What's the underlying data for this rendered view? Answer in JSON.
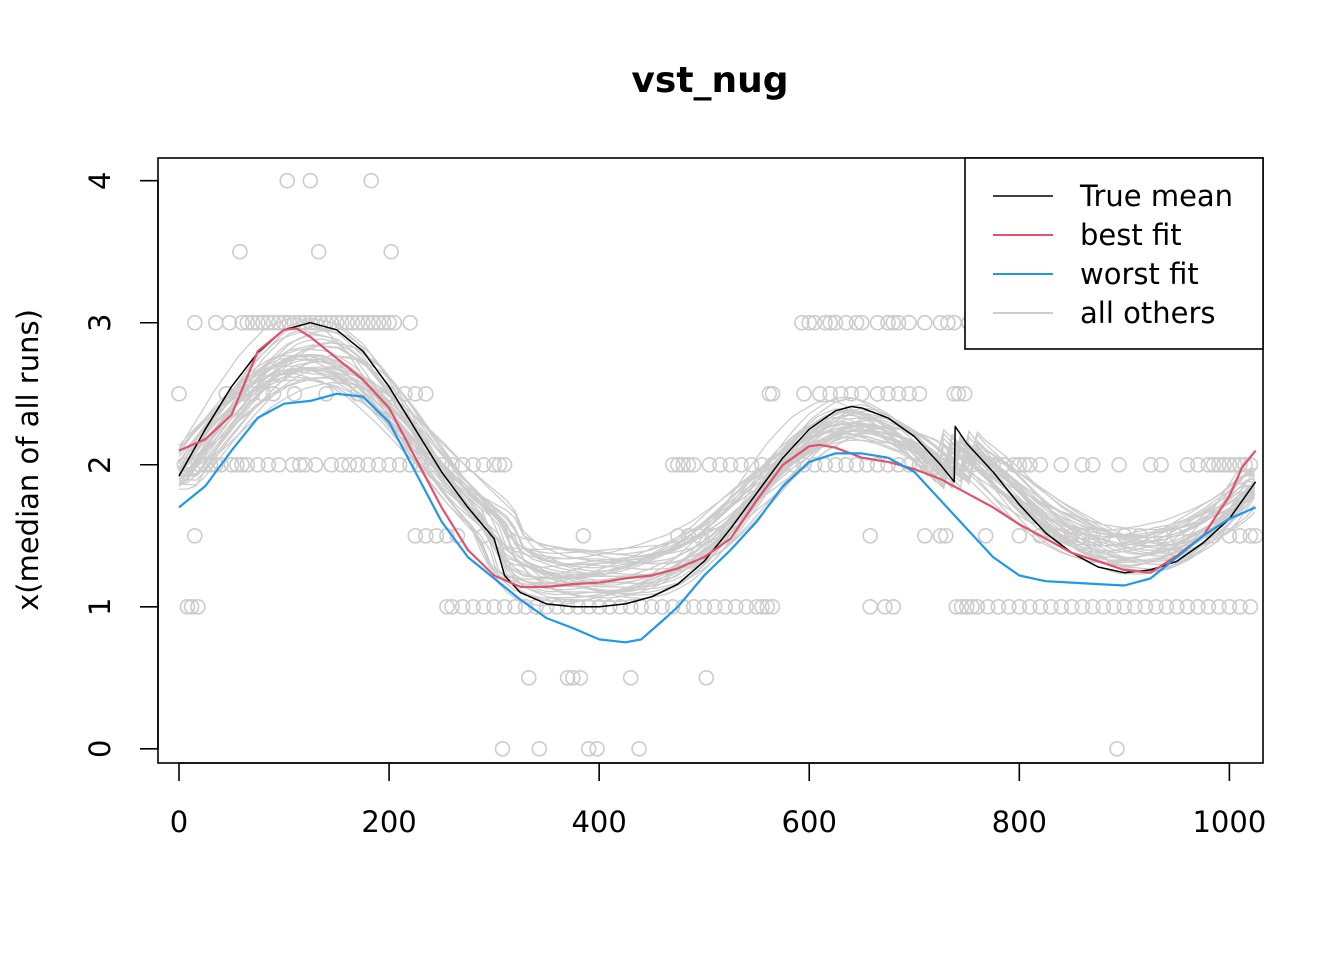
{
  "chart_data": {
    "type": "scatter",
    "title": "vst_nug",
    "xlabel": "",
    "ylabel": "x(median of all runs)",
    "xlim": [
      -20,
      1032
    ],
    "ylim": [
      -0.1,
      4.16
    ],
    "xticks": [
      0,
      200,
      400,
      600,
      800,
      1000
    ],
    "yticks": [
      0,
      1,
      2,
      3,
      4
    ],
    "grid": false,
    "legend": {
      "position": "top-right",
      "entries": [
        {
          "label": "True mean",
          "color": "#000000"
        },
        {
          "label": "best fit",
          "color": "#DF536B"
        },
        {
          "label": "worst fit",
          "color": "#2297E6"
        },
        {
          "label": "all others",
          "color": "#CCCCCC"
        }
      ]
    },
    "points_color": "#CCCCCC",
    "points": [
      [
        0,
        2.5
      ],
      [
        5,
        2
      ],
      [
        8,
        1
      ],
      [
        10,
        2
      ],
      [
        12,
        1
      ],
      [
        15,
        1.5
      ],
      [
        18,
        1
      ],
      [
        20,
        2
      ],
      [
        25,
        2
      ],
      [
        30,
        2
      ],
      [
        35,
        2
      ],
      [
        40,
        2
      ],
      [
        45,
        2.5
      ],
      [
        50,
        2
      ],
      [
        55,
        2
      ],
      [
        60,
        2
      ],
      [
        15,
        3
      ],
      [
        35,
        3
      ],
      [
        48,
        3
      ],
      [
        60,
        3
      ],
      [
        65,
        3
      ],
      [
        70,
        3
      ],
      [
        75,
        3
      ],
      [
        80,
        3
      ],
      [
        85,
        3
      ],
      [
        90,
        3
      ],
      [
        95,
        3
      ],
      [
        100,
        3
      ],
      [
        105,
        3
      ],
      [
        110,
        3
      ],
      [
        115,
        3
      ],
      [
        120,
        3
      ],
      [
        125,
        3
      ],
      [
        130,
        3
      ],
      [
        135,
        3
      ],
      [
        140,
        3
      ],
      [
        145,
        3
      ],
      [
        150,
        3
      ],
      [
        155,
        3
      ],
      [
        160,
        3
      ],
      [
        165,
        3
      ],
      [
        170,
        3
      ],
      [
        175,
        3
      ],
      [
        180,
        3
      ],
      [
        185,
        3
      ],
      [
        190,
        3
      ],
      [
        195,
        3
      ],
      [
        200,
        3
      ],
      [
        205,
        3
      ],
      [
        220,
        3
      ],
      [
        58,
        3.5
      ],
      [
        133,
        3.5
      ],
      [
        202,
        3.5
      ],
      [
        103,
        4
      ],
      [
        125,
        4
      ],
      [
        183,
        4
      ],
      [
        65,
        2
      ],
      [
        75,
        2
      ],
      [
        85,
        2
      ],
      [
        95,
        2
      ],
      [
        108,
        2
      ],
      [
        115,
        2
      ],
      [
        120,
        2
      ],
      [
        130,
        2
      ],
      [
        145,
        2
      ],
      [
        155,
        2
      ],
      [
        162,
        2
      ],
      [
        170,
        2
      ],
      [
        180,
        2
      ],
      [
        190,
        2
      ],
      [
        200,
        2
      ],
      [
        210,
        2
      ],
      [
        220,
        2
      ],
      [
        230,
        2
      ],
      [
        240,
        2
      ],
      [
        250,
        2
      ],
      [
        260,
        2
      ],
      [
        270,
        2
      ],
      [
        280,
        2
      ],
      [
        290,
        2
      ],
      [
        300,
        2
      ],
      [
        305,
        2
      ],
      [
        310,
        2
      ],
      [
        45,
        2.5
      ],
      [
        60,
        2.5
      ],
      [
        70,
        2.5
      ],
      [
        80,
        2.5
      ],
      [
        90,
        2.5
      ],
      [
        110,
        2.5
      ],
      [
        140,
        2.5
      ],
      [
        170,
        2.5
      ],
      [
        200,
        2.5
      ],
      [
        215,
        2.5
      ],
      [
        225,
        2.5
      ],
      [
        235,
        2.5
      ],
      [
        225,
        1.5
      ],
      [
        235,
        1.5
      ],
      [
        245,
        1.5
      ],
      [
        255,
        1.5
      ],
      [
        265,
        1.5
      ],
      [
        290,
        1.5
      ],
      [
        255,
        1
      ],
      [
        260,
        1
      ],
      [
        270,
        1
      ],
      [
        280,
        1
      ],
      [
        290,
        1
      ],
      [
        300,
        1
      ],
      [
        310,
        1
      ],
      [
        320,
        1
      ],
      [
        330,
        1
      ],
      [
        340,
        1
      ],
      [
        350,
        1
      ],
      [
        360,
        1
      ],
      [
        370,
        1
      ],
      [
        380,
        1
      ],
      [
        390,
        1
      ],
      [
        400,
        1
      ],
      [
        410,
        1
      ],
      [
        420,
        1
      ],
      [
        430,
        1
      ],
      [
        440,
        1
      ],
      [
        450,
        1
      ],
      [
        460,
        1
      ],
      [
        470,
        1
      ],
      [
        480,
        1
      ],
      [
        490,
        1
      ],
      [
        500,
        1
      ],
      [
        510,
        1
      ],
      [
        520,
        1
      ],
      [
        530,
        1
      ],
      [
        540,
        1
      ],
      [
        550,
        1
      ],
      [
        555,
        1
      ],
      [
        560,
        1
      ],
      [
        565,
        1
      ],
      [
        308,
        0
      ],
      [
        343,
        0
      ],
      [
        390,
        0
      ],
      [
        398,
        0
      ],
      [
        438,
        0
      ],
      [
        333,
        0.5
      ],
      [
        370,
        0.5
      ],
      [
        375,
        0.5
      ],
      [
        382,
        0.5
      ],
      [
        430,
        0.5
      ],
      [
        502,
        0.5
      ],
      [
        385,
        1.5
      ],
      [
        475,
        1.5
      ],
      [
        485,
        1.5
      ],
      [
        495,
        1.5
      ],
      [
        510,
        1.5
      ],
      [
        470,
        2
      ],
      [
        475,
        2
      ],
      [
        480,
        2
      ],
      [
        485,
        2
      ],
      [
        490,
        2
      ],
      [
        505,
        2
      ],
      [
        515,
        2
      ],
      [
        525,
        2
      ],
      [
        535,
        2
      ],
      [
        545,
        2
      ],
      [
        555,
        2
      ],
      [
        565,
        2
      ],
      [
        575,
        2
      ],
      [
        585,
        2
      ],
      [
        595,
        2
      ],
      [
        605,
        2
      ],
      [
        615,
        2
      ],
      [
        625,
        2
      ],
      [
        635,
        2
      ],
      [
        645,
        2
      ],
      [
        655,
        2
      ],
      [
        665,
        2
      ],
      [
        675,
        2
      ],
      [
        685,
        2
      ],
      [
        695,
        2
      ],
      [
        705,
        2
      ],
      [
        715,
        2
      ],
      [
        725,
        2
      ],
      [
        735,
        2
      ],
      [
        745,
        2
      ],
      [
        755,
        2
      ],
      [
        765,
        2
      ],
      [
        775,
        2
      ],
      [
        785,
        2
      ],
      [
        795,
        2
      ],
      [
        800,
        2
      ],
      [
        805,
        2
      ],
      [
        810,
        2
      ],
      [
        562,
        2.5
      ],
      [
        565,
        2.5
      ],
      [
        595,
        2.5
      ],
      [
        610,
        2.5
      ],
      [
        620,
        2.5
      ],
      [
        630,
        2.5
      ],
      [
        640,
        2.5
      ],
      [
        650,
        2.5
      ],
      [
        665,
        2.5
      ],
      [
        675,
        2.5
      ],
      [
        685,
        2.5
      ],
      [
        695,
        2.5
      ],
      [
        705,
        2.5
      ],
      [
        738,
        2.5
      ],
      [
        742,
        2.5
      ],
      [
        748,
        2.5
      ],
      [
        593,
        3
      ],
      [
        600,
        3
      ],
      [
        605,
        3
      ],
      [
        615,
        3
      ],
      [
        620,
        3
      ],
      [
        625,
        3
      ],
      [
        635,
        3
      ],
      [
        645,
        3
      ],
      [
        650,
        3
      ],
      [
        665,
        3
      ],
      [
        675,
        3
      ],
      [
        680,
        3
      ],
      [
        685,
        3
      ],
      [
        695,
        3
      ],
      [
        710,
        3
      ],
      [
        725,
        3
      ],
      [
        732,
        3
      ],
      [
        738,
        3
      ],
      [
        752,
        3
      ],
      [
        658,
        1.5
      ],
      [
        710,
        1.5
      ],
      [
        725,
        1.5
      ],
      [
        730,
        1.5
      ],
      [
        768,
        1.5
      ],
      [
        800,
        1.5
      ],
      [
        820,
        1.5
      ],
      [
        840,
        1.5
      ],
      [
        850,
        1.5
      ],
      [
        860,
        1.5
      ],
      [
        870,
        1.5
      ],
      [
        880,
        1.5
      ],
      [
        900,
        1.5
      ],
      [
        915,
        1.5
      ],
      [
        935,
        1.5
      ],
      [
        950,
        1.5
      ],
      [
        985,
        1.5
      ],
      [
        1000,
        1.5
      ],
      [
        1010,
        1.5
      ],
      [
        1020,
        1.5
      ],
      [
        1025,
        1.5
      ],
      [
        658,
        1
      ],
      [
        672,
        1
      ],
      [
        680,
        1
      ],
      [
        740,
        1
      ],
      [
        745,
        1
      ],
      [
        750,
        1
      ],
      [
        755,
        1
      ],
      [
        760,
        1
      ],
      [
        770,
        1
      ],
      [
        780,
        1
      ],
      [
        790,
        1
      ],
      [
        800,
        1
      ],
      [
        810,
        1
      ],
      [
        820,
        1
      ],
      [
        830,
        1
      ],
      [
        840,
        1
      ],
      [
        850,
        1
      ],
      [
        860,
        1
      ],
      [
        870,
        1
      ],
      [
        880,
        1
      ],
      [
        890,
        1
      ],
      [
        900,
        1
      ],
      [
        910,
        1
      ],
      [
        920,
        1
      ],
      [
        930,
        1
      ],
      [
        940,
        1
      ],
      [
        950,
        1
      ],
      [
        960,
        1
      ],
      [
        970,
        1
      ],
      [
        980,
        1
      ],
      [
        990,
        1
      ],
      [
        1000,
        1
      ],
      [
        1010,
        1
      ],
      [
        1020,
        1
      ],
      [
        820,
        2
      ],
      [
        840,
        2
      ],
      [
        860,
        2
      ],
      [
        870,
        2
      ],
      [
        895,
        2
      ],
      [
        925,
        2
      ],
      [
        935,
        2
      ],
      [
        960,
        2
      ],
      [
        970,
        2
      ],
      [
        980,
        2
      ],
      [
        985,
        2
      ],
      [
        990,
        2
      ],
      [
        995,
        2
      ],
      [
        1000,
        2
      ],
      [
        1005,
        2
      ],
      [
        1010,
        2
      ],
      [
        1015,
        2
      ],
      [
        1020,
        2
      ],
      [
        893,
        0
      ]
    ],
    "series": [
      {
        "name": "True mean",
        "color": "#000000",
        "width": 1.5,
        "x": [
          0,
          25,
          50,
          75,
          100,
          125,
          150,
          175,
          200,
          225,
          250,
          275,
          300,
          305,
          310,
          325,
          350,
          375,
          400,
          425,
          450,
          475,
          500,
          525,
          550,
          575,
          600,
          625,
          640,
          650,
          675,
          700,
          725,
          738,
          739,
          750,
          775,
          800,
          825,
          850,
          875,
          900,
          925,
          950,
          975,
          1000,
          1025
        ],
        "y": [
          1.92,
          2.25,
          2.55,
          2.79,
          2.95,
          3.0,
          2.95,
          2.8,
          2.55,
          2.25,
          1.95,
          1.7,
          1.48,
          1.35,
          1.22,
          1.1,
          1.02,
          1.0,
          1.0,
          1.02,
          1.07,
          1.16,
          1.32,
          1.55,
          1.8,
          2.05,
          2.25,
          2.38,
          2.41,
          2.4,
          2.33,
          2.2,
          2.0,
          1.88,
          2.27,
          2.15,
          1.95,
          1.72,
          1.52,
          1.38,
          1.28,
          1.24,
          1.26,
          1.32,
          1.45,
          1.62,
          1.88
        ]
      },
      {
        "name": "best fit",
        "color": "#DF536B",
        "width": 2.2,
        "x": [
          0,
          25,
          50,
          75,
          100,
          112,
          125,
          150,
          175,
          200,
          225,
          250,
          275,
          300,
          325,
          350,
          375,
          400,
          425,
          450,
          475,
          500,
          525,
          550,
          575,
          600,
          610,
          625,
          650,
          675,
          700,
          725,
          750,
          775,
          800,
          825,
          850,
          875,
          900,
          925,
          950,
          975,
          1000,
          1012,
          1025
        ],
        "y": [
          2.1,
          2.18,
          2.35,
          2.8,
          2.95,
          2.96,
          2.9,
          2.75,
          2.6,
          2.4,
          2.05,
          1.7,
          1.4,
          1.22,
          1.14,
          1.14,
          1.16,
          1.17,
          1.2,
          1.22,
          1.27,
          1.35,
          1.48,
          1.75,
          2.0,
          2.13,
          2.14,
          2.12,
          2.05,
          2.02,
          1.97,
          1.9,
          1.8,
          1.7,
          1.58,
          1.48,
          1.38,
          1.32,
          1.26,
          1.24,
          1.36,
          1.5,
          1.78,
          1.98,
          2.1
        ]
      },
      {
        "name": "worst fit",
        "color": "#2297E6",
        "width": 2.2,
        "x": [
          0,
          25,
          50,
          75,
          100,
          125,
          150,
          175,
          200,
          225,
          250,
          275,
          300,
          325,
          350,
          375,
          400,
          425,
          440,
          460,
          475,
          500,
          525,
          550,
          575,
          600,
          625,
          650,
          675,
          700,
          725,
          750,
          775,
          800,
          825,
          850,
          875,
          900,
          925,
          950,
          975,
          1000,
          1025
        ],
        "y": [
          1.7,
          1.85,
          2.1,
          2.33,
          2.43,
          2.45,
          2.5,
          2.48,
          2.3,
          1.95,
          1.6,
          1.35,
          1.2,
          1.05,
          0.92,
          0.85,
          0.77,
          0.75,
          0.77,
          0.9,
          1.0,
          1.22,
          1.4,
          1.6,
          1.85,
          2.02,
          2.08,
          2.08,
          2.05,
          1.95,
          1.75,
          1.55,
          1.35,
          1.22,
          1.18,
          1.17,
          1.16,
          1.15,
          1.2,
          1.35,
          1.5,
          1.62,
          1.7
        ]
      }
    ]
  }
}
